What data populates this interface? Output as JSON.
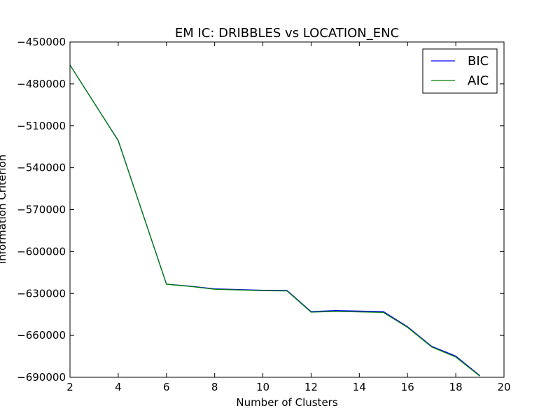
{
  "chart_data": {
    "type": "line",
    "title": "EM IC: DRIBBLES vs LOCATION_ENC",
    "xlabel": "Number of Clusters",
    "ylabel": "Information Criterion",
    "xlim": [
      2,
      20
    ],
    "ylim": [
      -690000,
      -450000
    ],
    "xticks": [
      2,
      4,
      6,
      8,
      10,
      12,
      14,
      16,
      18,
      20
    ],
    "yticks": [
      -450000,
      -480000,
      -510000,
      -540000,
      -570000,
      -600000,
      -630000,
      -660000,
      -690000
    ],
    "xtick_labels": [
      "2",
      "4",
      "6",
      "8",
      "10",
      "12",
      "14",
      "16",
      "18",
      "20"
    ],
    "ytick_labels": [
      "−450000",
      "−480000",
      "−510000",
      "−540000",
      "−570000",
      "−600000",
      "−630000",
      "−660000",
      "−690000"
    ],
    "legend_position": "top-right",
    "x": [
      2,
      4,
      6,
      7,
      8,
      10,
      11,
      12,
      13,
      15,
      16,
      17,
      18,
      19
    ],
    "series": [
      {
        "name": "BIC",
        "color": "#0000ff",
        "values": [
          -466500,
          -520500,
          -623300,
          -624800,
          -626700,
          -627700,
          -627800,
          -643000,
          -642200,
          -643000,
          -653800,
          -667800,
          -674800,
          -688800
        ]
      },
      {
        "name": "AIC",
        "color": "#008000",
        "values": [
          -466500,
          -520700,
          -623400,
          -625000,
          -627000,
          -628000,
          -628200,
          -643400,
          -642800,
          -643600,
          -654300,
          -668300,
          -675500,
          -689200
        ]
      }
    ]
  }
}
